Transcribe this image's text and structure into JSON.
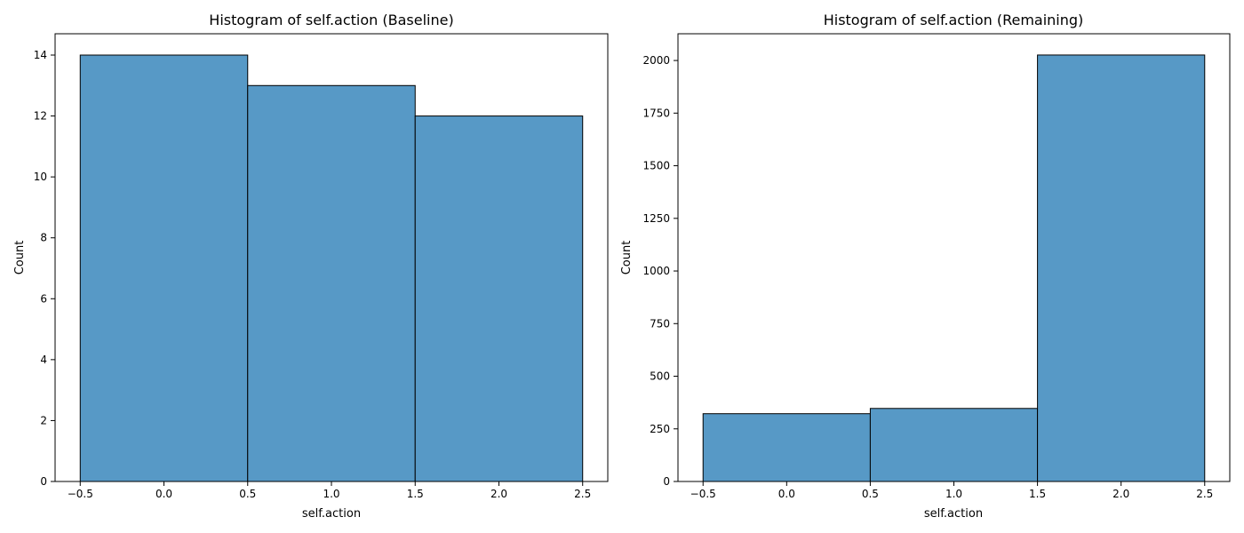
{
  "chart_data": [
    {
      "type": "bar",
      "title": "Histogram of self.action (Baseline)",
      "xlabel": "self.action",
      "ylabel": "Count",
      "bins": [
        [
          -0.5,
          0.5
        ],
        [
          0.5,
          1.5
        ],
        [
          1.5,
          2.5
        ]
      ],
      "values": [
        14,
        13,
        12
      ],
      "xlim": [
        -0.65,
        2.65
      ],
      "ylim": [
        0,
        14.7
      ],
      "xticks": [
        -0.5,
        0.0,
        0.5,
        1.0,
        1.5,
        2.0,
        2.5
      ],
      "xtick_labels": [
        "−0.5",
        "0.0",
        "0.5",
        "1.0",
        "1.5",
        "2.0",
        "2.5"
      ],
      "yticks": [
        0,
        2,
        4,
        6,
        8,
        10,
        12,
        14
      ],
      "ytick_labels": [
        "0",
        "2",
        "4",
        "6",
        "8",
        "10",
        "12",
        "14"
      ],
      "grid": false,
      "bar_color": "#5799c6",
      "edge_color": "#000000"
    },
    {
      "type": "bar",
      "title": "Histogram of self.action (Remaining)",
      "xlabel": "self.action",
      "ylabel": "Count",
      "bins": [
        [
          -0.5,
          0.5
        ],
        [
          0.5,
          1.5
        ],
        [
          1.5,
          2.5
        ]
      ],
      "values": [
        322,
        347,
        2026
      ],
      "xlim": [
        -0.65,
        2.65
      ],
      "ylim": [
        0,
        2127
      ],
      "xticks": [
        -0.5,
        0.0,
        0.5,
        1.0,
        1.5,
        2.0,
        2.5
      ],
      "xtick_labels": [
        "−0.5",
        "0.0",
        "0.5",
        "1.0",
        "1.5",
        "2.0",
        "2.5"
      ],
      "yticks": [
        0,
        250,
        500,
        750,
        1000,
        1250,
        1500,
        1750,
        2000
      ],
      "ytick_labels": [
        "0",
        "250",
        "500",
        "750",
        "1000",
        "1250",
        "1500",
        "1750",
        "2000"
      ],
      "grid": false,
      "bar_color": "#5799c6",
      "edge_color": "#000000"
    }
  ]
}
